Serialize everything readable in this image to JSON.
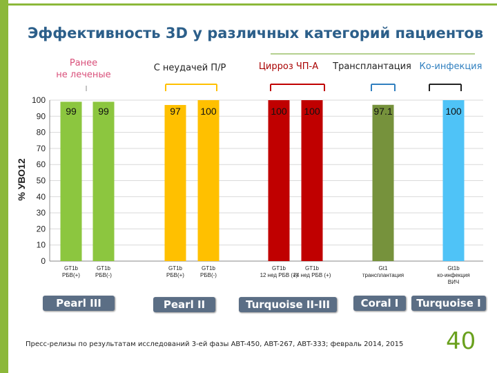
{
  "title": "Эффективность 3D у различных категорий пациентов",
  "group_labels": {
    "naive_line1": "Ранее",
    "naive_line2": "не леченые",
    "failure": "С неудачей П/Р",
    "cirrhosis": "Цирроз ЧП-А",
    "transplant": "Трансплантация",
    "coinfection": "Ко-инфекция"
  },
  "chart_data": {
    "type": "bar",
    "ylabel": "% УВО12",
    "ylim": [
      0,
      100
    ],
    "yticks": [
      0,
      10,
      20,
      30,
      40,
      50,
      60,
      70,
      80,
      90,
      100
    ],
    "categories": [
      "GT1b РБВ(+)",
      "GT1b РБВ(-)",
      "GT1b РБВ(+)",
      "GT1b РБВ(-)",
      "GT1b 12 нед РБВ (+)",
      "GT1b 24 нед РБВ (+)",
      "Gt1 трансплантация",
      "Gt1b ко-инфекция ВИЧ"
    ],
    "category_lines": [
      [
        "GT1b",
        "РБВ(+)"
      ],
      [
        "GT1b",
        "РБВ(-)"
      ],
      [
        "GT1b",
        "РБВ(+)"
      ],
      [
        "GT1b",
        "РБВ(-)"
      ],
      [
        "GT1b",
        "12 нед РБВ (+)"
      ],
      [
        "GT1b",
        "24 нед РБВ (+)"
      ],
      [
        "Gt1",
        "трансплантация"
      ],
      [
        "Gt1b",
        "ко-инфекция",
        "ВИЧ"
      ]
    ],
    "values": [
      99,
      99,
      97,
      100,
      100,
      100,
      97.1,
      100
    ],
    "value_labels": [
      "99",
      "99",
      "97",
      "100",
      "100",
      "100",
      "97.1",
      "100"
    ],
    "colors": [
      "#8cc63f",
      "#8cc63f",
      "#ffc000",
      "#ffc000",
      "#c00000",
      "#c00000",
      "#76923c",
      "#4fc3f7"
    ],
    "grid": true
  },
  "studies": [
    "Pearl III",
    "Pearl II",
    "Turquoise II-III",
    "Coral I",
    "Turquoise I"
  ],
  "sources": "Пресс-релизы по результатам исследований 3-ей фазы ABT-450, ABT-267, ABT-333; февраль 2014, 2015",
  "page_number": "40"
}
